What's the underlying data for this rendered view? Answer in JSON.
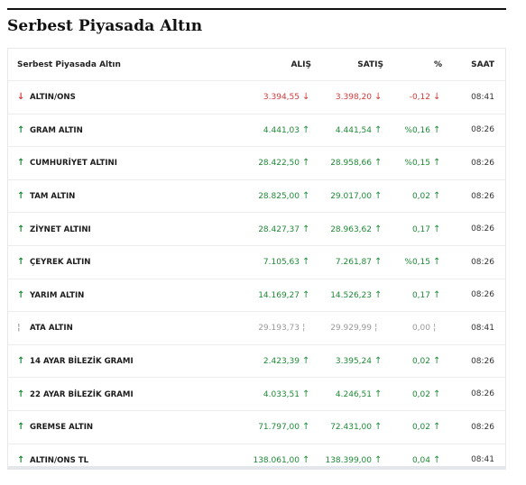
{
  "section_title": "Serbest Piyasada Altın",
  "table": {
    "headers": {
      "name": "Serbest Piyasada Altın",
      "buy": "ALIŞ",
      "sell": "SATIŞ",
      "pct": "%",
      "time": "SAAT"
    },
    "rows": [
      {
        "name": "ALTIN/ONS",
        "buy": "3.394,55",
        "sell": "3.398,20",
        "pct": "-0,12",
        "time": "08:41",
        "trend": "down"
      },
      {
        "name": "GRAM ALTIN",
        "buy": "4.441,03",
        "sell": "4.441,54",
        "pct": "%0,16",
        "time": "08:26",
        "trend": "up"
      },
      {
        "name": "CUMHURİYET ALTINI",
        "buy": "28.422,50",
        "sell": "28.958,66",
        "pct": "%0,15",
        "time": "08:26",
        "trend": "up"
      },
      {
        "name": "TAM ALTIN",
        "buy": "28.825,00",
        "sell": "29.017,00",
        "pct": "0,02",
        "time": "08:26",
        "trend": "up"
      },
      {
        "name": "ZİYNET ALTINI",
        "buy": "28.427,37",
        "sell": "28.963,62",
        "pct": "0,17",
        "time": "08:26",
        "trend": "up"
      },
      {
        "name": "ÇEYREK ALTIN",
        "buy": "7.105,63",
        "sell": "7.261,87",
        "pct": "%0,15",
        "time": "08:26",
        "trend": "up"
      },
      {
        "name": "YARIM ALTIN",
        "buy": "14.169,27",
        "sell": "14.526,23",
        "pct": "0,17",
        "time": "08:26",
        "trend": "up"
      },
      {
        "name": "ATA ALTIN",
        "buy": "29.193,73",
        "sell": "29.929,99",
        "pct": "0,00",
        "time": "08:41",
        "trend": "flat"
      },
      {
        "name": "14 AYAR BİLEZİK GRAMI",
        "buy": "2.423,39",
        "sell": "3.395,24",
        "pct": "0,02",
        "time": "08:26",
        "trend": "up"
      },
      {
        "name": "22 AYAR BİLEZİK GRAMI",
        "buy": "4.033,51",
        "sell": "4.246,51",
        "pct": "0,02",
        "time": "08:26",
        "trend": "up"
      },
      {
        "name": "GREMSE ALTIN",
        "buy": "71.797,00",
        "sell": "72.431,00",
        "pct": "0,02",
        "time": "08:26",
        "trend": "up"
      },
      {
        "name": "ALTIN/ONS TL",
        "buy": "138.061,00",
        "sell": "138.399,00",
        "pct": "0,04",
        "time": "08:41",
        "trend": "up"
      }
    ]
  },
  "colors": {
    "up": "#1e8a36",
    "down": "#d33a3a",
    "flat": "#999999"
  },
  "icons": {
    "up": "arrow-up-icon",
    "down": "arrow-down-icon",
    "flat": "arrow-flat-icon"
  }
}
